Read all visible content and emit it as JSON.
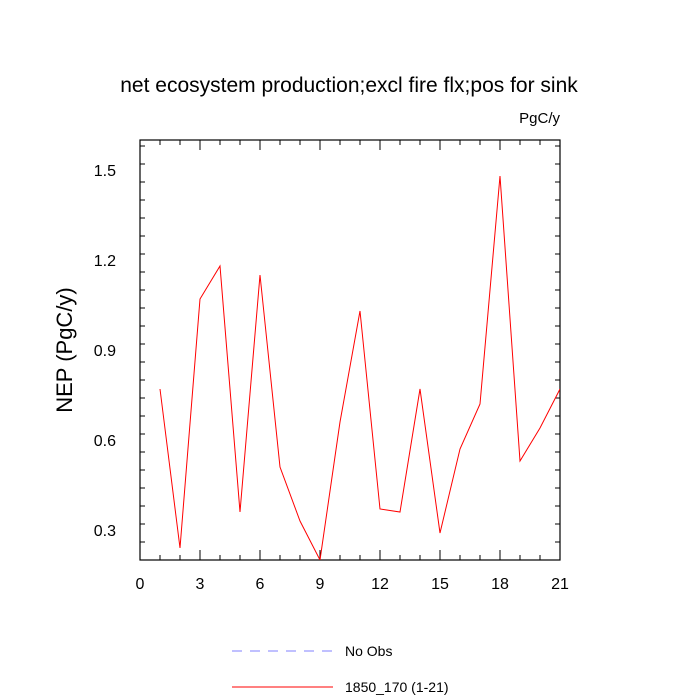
{
  "chart_data": {
    "type": "line",
    "title": "net ecosystem production;excl fire flx;pos for sink",
    "units_label": "PgC/y",
    "ylabel": "NEP  (PgC/y)",
    "xlabel": "",
    "xlim": [
      0,
      21
    ],
    "ylim": [
      0.2,
      1.6
    ],
    "xticks": [
      0,
      3,
      6,
      9,
      12,
      15,
      18,
      21
    ],
    "yticks": [
      0.3,
      0.6,
      0.9,
      1.2,
      1.5
    ],
    "ytick_labels": [
      "0.3",
      "0.6",
      "0.9",
      "1.2",
      "1.5"
    ],
    "grid": false,
    "legend_position": "bottom",
    "series": [
      {
        "name": "1850_170 (1-21)",
        "color": "#ff0000",
        "style": "solid",
        "x": [
          1,
          2,
          3,
          4,
          5,
          6,
          7,
          8,
          9,
          10,
          11,
          12,
          13,
          14,
          15,
          16,
          17,
          18,
          19,
          20,
          21
        ],
        "y": [
          0.77,
          0.24,
          1.07,
          1.18,
          0.36,
          1.15,
          0.51,
          0.33,
          0.2,
          0.66,
          1.03,
          0.37,
          0.36,
          0.77,
          0.29,
          0.57,
          0.72,
          1.48,
          0.53,
          0.64,
          0.77
        ]
      },
      {
        "name": "No Obs",
        "color": "#8080ff",
        "style": "dashed",
        "x": [],
        "y": []
      }
    ]
  }
}
